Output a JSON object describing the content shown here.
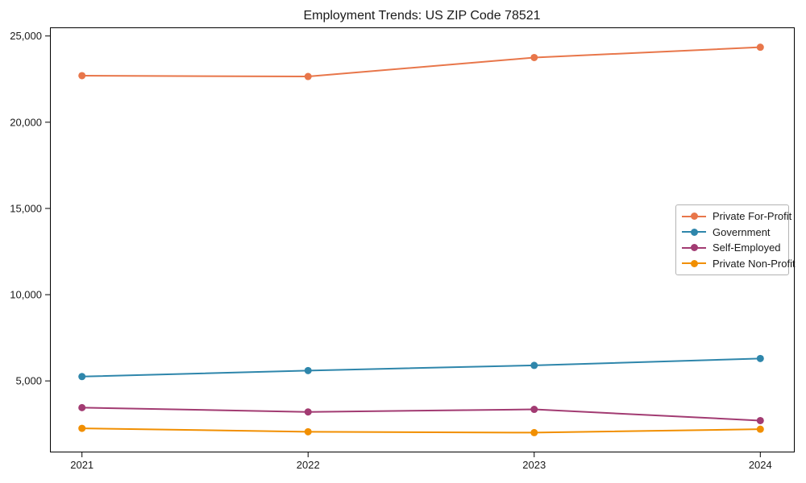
{
  "chart_data": {
    "type": "line",
    "title": "Employment Trends: US ZIP Code 78521",
    "categories": [
      "2021",
      "2022",
      "2023",
      "2024"
    ],
    "series": [
      {
        "name": "Private For-Profit",
        "color": "#e8764a",
        "values": [
          22700,
          22650,
          23750,
          24350
        ]
      },
      {
        "name": "Government",
        "color": "#2e86ab",
        "values": [
          5250,
          5600,
          5900,
          6300
        ]
      },
      {
        "name": "Self-Employed",
        "color": "#a23b72",
        "values": [
          3450,
          3200,
          3350,
          2700
        ]
      },
      {
        "name": "Private Non-Profit",
        "color": "#f18f01",
        "values": [
          2250,
          2050,
          2000,
          2200
        ]
      }
    ],
    "xlabel": "",
    "ylabel": "",
    "ylim": [
      900,
      25500
    ],
    "yticks": [
      5000,
      10000,
      15000,
      20000,
      25000
    ],
    "ytick_labels": [
      "5,000",
      "10,000",
      "15,000",
      "20,000",
      "25,000"
    ],
    "legend_position": "center right",
    "grid": false,
    "axis_color": "#000000",
    "marker": "circle",
    "line_width": 2
  }
}
